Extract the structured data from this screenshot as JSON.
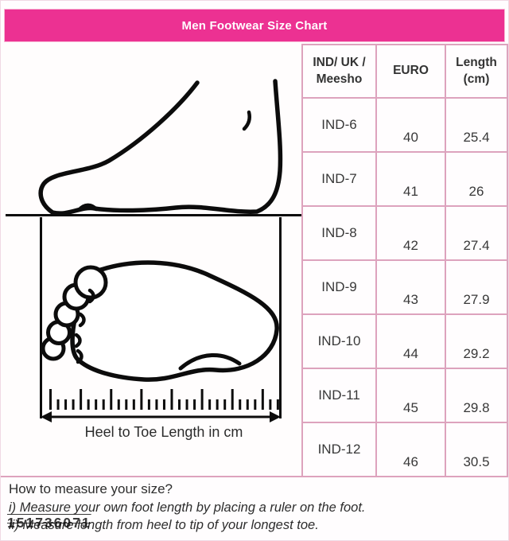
{
  "header": {
    "title": "Men Footwear Size Chart"
  },
  "diagram": {
    "ruler_label": "Heel to Toe Length in cm",
    "icons": [
      "side-view-foot-icon",
      "top-view-foot-icon",
      "ruler-icon",
      "double-arrow-icon"
    ]
  },
  "size_table": {
    "header": [
      {
        "line1": "IND/ UK /",
        "line2": "Meesho"
      },
      {
        "line1": "EURO",
        "line2": ""
      },
      {
        "line1": "Length",
        "line2": "(cm)"
      }
    ],
    "rows": [
      {
        "ind": "IND-6",
        "euro": "40",
        "length": "25.4"
      },
      {
        "ind": "IND-7",
        "euro": "41",
        "length": "26"
      },
      {
        "ind": "IND-8",
        "euro": "42",
        "length": "27.4"
      },
      {
        "ind": "IND-9",
        "euro": "43",
        "length": "27.9"
      },
      {
        "ind": "IND-10",
        "euro": "44",
        "length": "29.2"
      },
      {
        "ind": "IND-11",
        "euro": "45",
        "length": "29.8"
      },
      {
        "ind": "IND-12",
        "euro": "46",
        "length": "30.5"
      }
    ]
  },
  "footer": {
    "heading": "How to measure your size?",
    "line1": "i) Measure your own foot length by placing a ruler on the foot.",
    "line2": "ii) Measure length from heel to tip of your longest toe.",
    "watermark": "151736071"
  },
  "colors": {
    "accent_pink": "#ec3192",
    "table_border": "#dda3bd",
    "text": "#383838"
  }
}
